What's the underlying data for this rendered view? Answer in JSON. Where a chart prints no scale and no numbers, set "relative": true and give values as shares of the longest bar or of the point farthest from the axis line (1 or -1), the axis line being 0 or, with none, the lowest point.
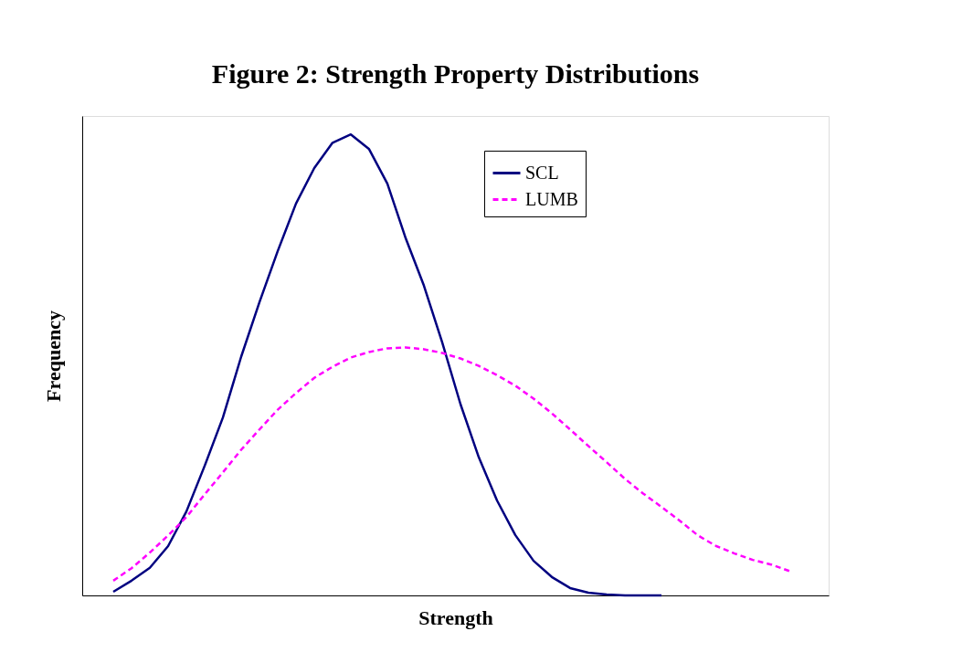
{
  "chart_data": {
    "type": "line",
    "title": "Figure 2:  Strength Property Distributions",
    "xlabel": "Strength",
    "ylabel": "Frequency",
    "relative": true,
    "tick_labels": false,
    "legend": "top right",
    "marker": "none",
    "categories": [
      null,
      null,
      null,
      null,
      null,
      null,
      null,
      null,
      null,
      null,
      null,
      null,
      null,
      null,
      null,
      null,
      null,
      null,
      null,
      null,
      null,
      null,
      null,
      null,
      null,
      null,
      null,
      null,
      null,
      null,
      null,
      null,
      null,
      null,
      null,
      null,
      null,
      null
    ],
    "series": [
      {
        "name": "SCL",
        "color": "#000080",
        "line_style": "solid",
        "values": [
          0.008,
          0.032,
          0.06,
          0.107,
          0.182,
          0.281,
          0.386,
          0.518,
          0.636,
          0.747,
          0.85,
          0.927,
          0.982,
          1.0,
          0.968,
          0.893,
          0.775,
          0.672,
          0.549,
          0.415,
          0.3,
          0.206,
          0.131,
          0.075,
          0.04,
          0.016,
          0.006,
          0.002,
          0,
          0,
          0,
          null,
          null,
          null,
          null,
          null,
          null,
          null
        ]
      },
      {
        "name": "LUMB",
        "color": "#ff00ff",
        "line_style": "dashed",
        "values": [
          0.032,
          0.059,
          0.093,
          0.13,
          0.17,
          0.219,
          0.267,
          0.316,
          0.36,
          0.403,
          0.439,
          0.472,
          0.496,
          0.516,
          0.528,
          0.536,
          0.538,
          0.534,
          0.526,
          0.514,
          0.498,
          0.478,
          0.455,
          0.427,
          0.395,
          0.36,
          0.324,
          0.289,
          0.253,
          0.221,
          0.192,
          0.162,
          0.13,
          0.107,
          0.091,
          0.077,
          0.067,
          0.053
        ]
      }
    ]
  }
}
